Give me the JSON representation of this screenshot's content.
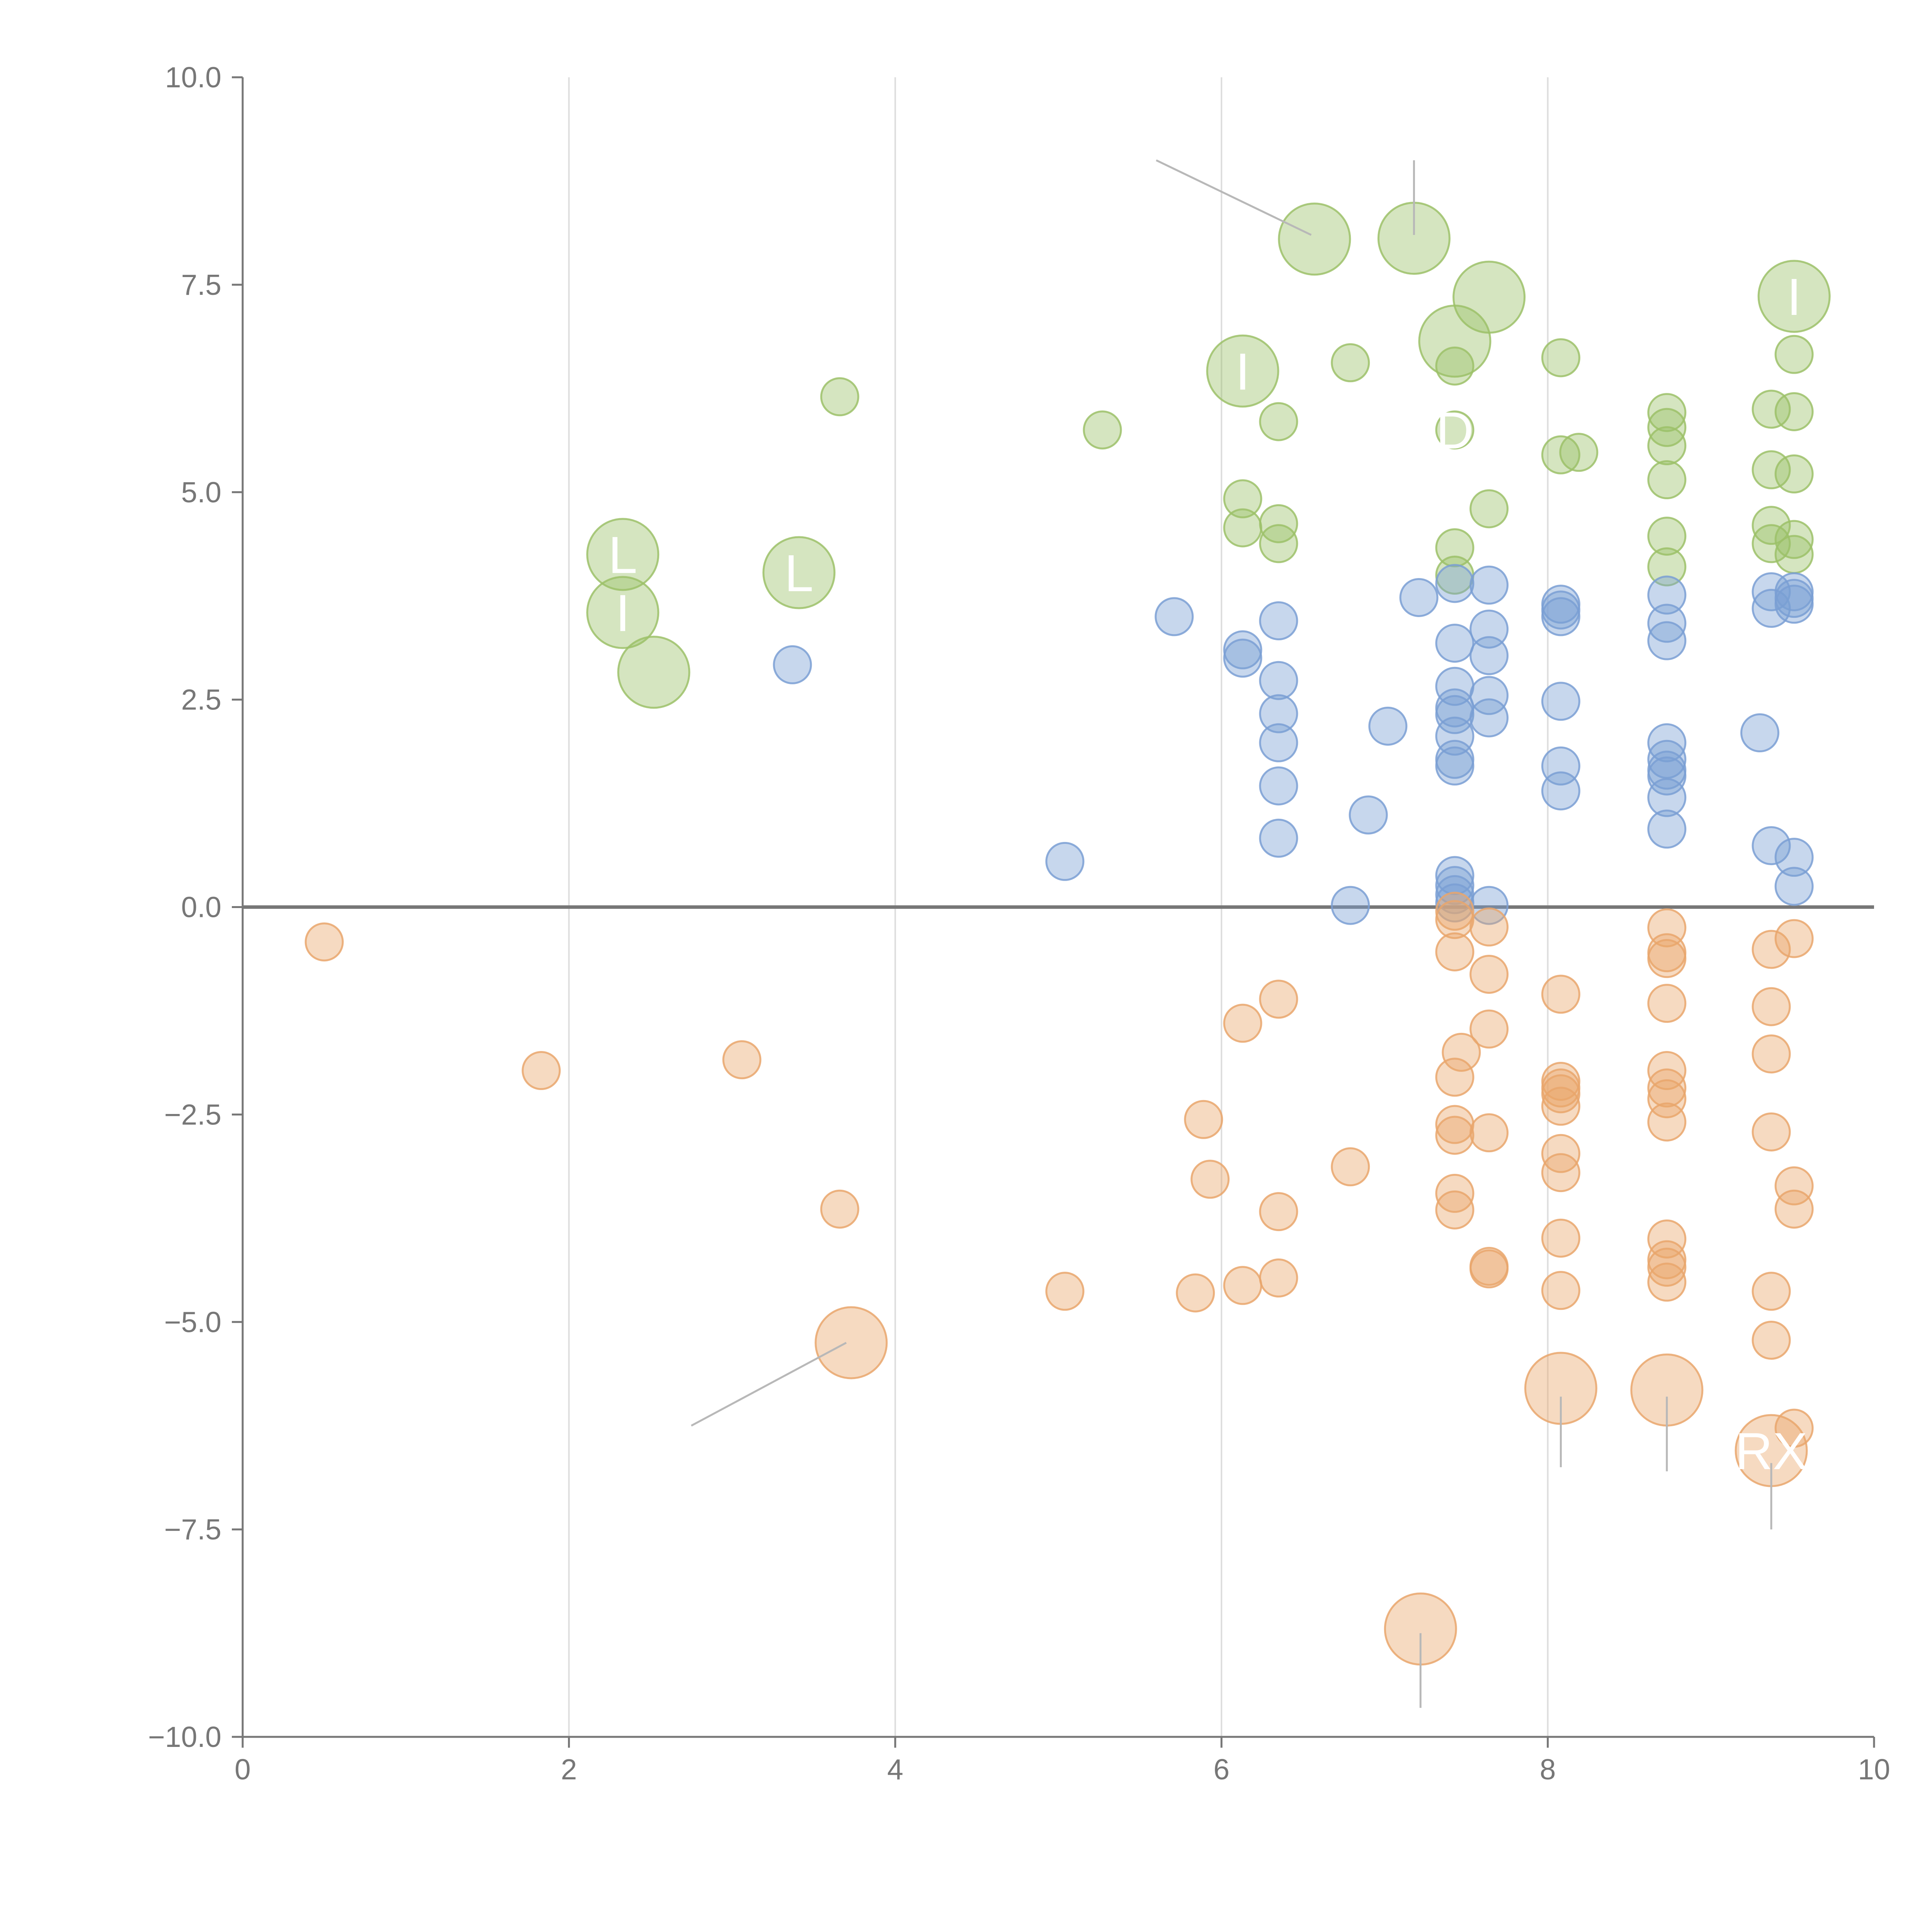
{
  "chart_data": {
    "type": "scatter",
    "title": "",
    "xlabel": "",
    "ylabel": "",
    "xlim": [
      0,
      10
    ],
    "ylim": [
      -10,
      10
    ],
    "x_ticks": [
      "0",
      "2",
      "4",
      "6",
      "8",
      "10"
    ],
    "y_ticks": [
      "10.0",
      "7.5",
      "5.0",
      "2.5",
      "0.0",
      "−2.5",
      "−5.0",
      "−7.5",
      "−10.0"
    ],
    "grid": "vertical",
    "zero_line": true,
    "legend": "none",
    "series": [
      {
        "name": "green",
        "color": "#9cc168",
        "points": [
          {
            "x": 2.33,
            "y": 4.25,
            "big": true,
            "label": "L"
          },
          {
            "x": 2.33,
            "y": 3.55,
            "big": true,
            "label": "I"
          },
          {
            "x": 2.52,
            "y": 2.83,
            "big": true
          },
          {
            "x": 3.41,
            "y": 4.03,
            "big": true,
            "label": "L"
          },
          {
            "x": 3.66,
            "y": 6.15
          },
          {
            "x": 5.27,
            "y": 5.75
          },
          {
            "x": 6.13,
            "y": 6.46,
            "big": true,
            "label": "I"
          },
          {
            "x": 6.57,
            "y": 8.05,
            "big": true
          },
          {
            "x": 7.18,
            "y": 8.06,
            "big": true
          },
          {
            "x": 7.64,
            "y": 7.35,
            "big": true
          },
          {
            "x": 7.43,
            "y": 6.82,
            "big": true
          },
          {
            "x": 9.51,
            "y": 7.36,
            "big": true,
            "label": "I"
          },
          {
            "x": 6.35,
            "y": 5.85
          },
          {
            "x": 6.79,
            "y": 6.56
          },
          {
            "x": 7.43,
            "y": 6.52
          },
          {
            "x": 7.43,
            "y": 5.75,
            "label": "D"
          },
          {
            "x": 8.08,
            "y": 6.62
          },
          {
            "x": 8.08,
            "y": 5.45
          },
          {
            "x": 8.19,
            "y": 5.48
          },
          {
            "x": 7.64,
            "y": 4.8
          },
          {
            "x": 6.13,
            "y": 4.92
          },
          {
            "x": 6.13,
            "y": 4.57
          },
          {
            "x": 6.35,
            "y": 4.62
          },
          {
            "x": 6.35,
            "y": 4.38
          },
          {
            "x": 7.43,
            "y": 4.33
          },
          {
            "x": 7.43,
            "y": 4.0
          },
          {
            "x": 8.73,
            "y": 5.96
          },
          {
            "x": 8.73,
            "y": 5.78
          },
          {
            "x": 8.73,
            "y": 5.56
          },
          {
            "x": 8.73,
            "y": 5.15
          },
          {
            "x": 8.73,
            "y": 4.47
          },
          {
            "x": 8.73,
            "y": 4.1
          },
          {
            "x": 9.37,
            "y": 6.0
          },
          {
            "x": 9.37,
            "y": 5.27
          },
          {
            "x": 9.37,
            "y": 4.6
          },
          {
            "x": 9.37,
            "y": 4.38
          },
          {
            "x": 9.51,
            "y": 6.66
          },
          {
            "x": 9.51,
            "y": 5.97
          },
          {
            "x": 9.51,
            "y": 5.22
          },
          {
            "x": 9.51,
            "y": 4.43
          },
          {
            "x": 9.51,
            "y": 4.25
          }
        ]
      },
      {
        "name": "blue",
        "color": "#7a9fd4",
        "points": [
          {
            "x": 3.37,
            "y": 2.92
          },
          {
            "x": 5.04,
            "y": 0.55
          },
          {
            "x": 5.71,
            "y": 3.5
          },
          {
            "x": 6.13,
            "y": 3.1
          },
          {
            "x": 6.13,
            "y": 3.0
          },
          {
            "x": 6.35,
            "y": 3.45
          },
          {
            "x": 6.35,
            "y": 2.73
          },
          {
            "x": 6.35,
            "y": 2.33
          },
          {
            "x": 6.35,
            "y": 1.98
          },
          {
            "x": 6.35,
            "y": 1.46
          },
          {
            "x": 6.35,
            "y": 0.83
          },
          {
            "x": 6.79,
            "y": 0.02
          },
          {
            "x": 6.9,
            "y": 1.11
          },
          {
            "x": 7.02,
            "y": 2.18
          },
          {
            "x": 7.21,
            "y": 3.73
          },
          {
            "x": 7.43,
            "y": 3.9
          },
          {
            "x": 7.43,
            "y": 3.18
          },
          {
            "x": 7.43,
            "y": 2.66
          },
          {
            "x": 7.43,
            "y": 2.4
          },
          {
            "x": 7.43,
            "y": 2.32
          },
          {
            "x": 7.43,
            "y": 2.06
          },
          {
            "x": 7.43,
            "y": 1.78
          },
          {
            "x": 7.43,
            "y": 1.7
          },
          {
            "x": 7.43,
            "y": 0.38
          },
          {
            "x": 7.43,
            "y": 0.26
          },
          {
            "x": 7.43,
            "y": 0.15
          },
          {
            "x": 7.43,
            "y": 0.05
          },
          {
            "x": 7.64,
            "y": 3.88
          },
          {
            "x": 7.64,
            "y": 3.35
          },
          {
            "x": 7.64,
            "y": 3.03
          },
          {
            "x": 7.64,
            "y": 2.55
          },
          {
            "x": 7.64,
            "y": 2.28
          },
          {
            "x": 7.64,
            "y": 0.02
          },
          {
            "x": 8.08,
            "y": 3.65
          },
          {
            "x": 8.08,
            "y": 3.58
          },
          {
            "x": 8.08,
            "y": 3.5
          },
          {
            "x": 8.08,
            "y": 2.48
          },
          {
            "x": 8.08,
            "y": 1.7
          },
          {
            "x": 8.08,
            "y": 1.4
          },
          {
            "x": 8.73,
            "y": 3.76
          },
          {
            "x": 8.73,
            "y": 3.42
          },
          {
            "x": 8.73,
            "y": 3.21
          },
          {
            "x": 8.73,
            "y": 1.98
          },
          {
            "x": 8.73,
            "y": 1.78
          },
          {
            "x": 8.73,
            "y": 1.65
          },
          {
            "x": 8.73,
            "y": 1.58
          },
          {
            "x": 8.73,
            "y": 1.32
          },
          {
            "x": 8.73,
            "y": 0.94
          },
          {
            "x": 9.3,
            "y": 2.1
          },
          {
            "x": 9.37,
            "y": 3.8
          },
          {
            "x": 9.37,
            "y": 3.6
          },
          {
            "x": 9.37,
            "y": 0.74
          },
          {
            "x": 9.51,
            "y": 3.8
          },
          {
            "x": 9.51,
            "y": 3.72
          },
          {
            "x": 9.51,
            "y": 3.65
          },
          {
            "x": 9.51,
            "y": 0.6
          },
          {
            "x": 9.51,
            "y": 0.25
          }
        ]
      },
      {
        "name": "orange",
        "color": "#e9a66c",
        "points": [
          {
            "x": 0.5,
            "y": -0.42
          },
          {
            "x": 1.83,
            "y": -1.97
          },
          {
            "x": 3.06,
            "y": -1.84
          },
          {
            "x": 3.66,
            "y": -3.64
          },
          {
            "x": 3.73,
            "y": -5.25,
            "big": true
          },
          {
            "x": 5.04,
            "y": -4.63
          },
          {
            "x": 5.84,
            "y": -4.65
          },
          {
            "x": 5.89,
            "y": -2.56
          },
          {
            "x": 5.93,
            "y": -3.28
          },
          {
            "x": 6.13,
            "y": -1.4
          },
          {
            "x": 6.13,
            "y": -4.56
          },
          {
            "x": 6.35,
            "y": -1.11
          },
          {
            "x": 6.35,
            "y": -3.67
          },
          {
            "x": 6.35,
            "y": -4.47
          },
          {
            "x": 6.79,
            "y": -3.13
          },
          {
            "x": 7.43,
            "y": -0.05
          },
          {
            "x": 7.43,
            "y": -0.15
          },
          {
            "x": 7.43,
            "y": -0.54
          },
          {
            "x": 7.47,
            "y": -1.75
          },
          {
            "x": 7.43,
            "y": -2.05
          },
          {
            "x": 7.43,
            "y": -2.62
          },
          {
            "x": 7.43,
            "y": -2.75
          },
          {
            "x": 7.43,
            "y": -3.45
          },
          {
            "x": 7.43,
            "y": -3.65
          },
          {
            "x": 7.64,
            "y": -0.24
          },
          {
            "x": 7.64,
            "y": -0.81
          },
          {
            "x": 7.64,
            "y": -1.47
          },
          {
            "x": 7.64,
            "y": -2.72
          },
          {
            "x": 7.64,
            "y": -4.33
          },
          {
            "x": 7.64,
            "y": -4.36
          },
          {
            "x": 8.08,
            "y": -1.05
          },
          {
            "x": 8.08,
            "y": -2.1
          },
          {
            "x": 8.08,
            "y": -2.18
          },
          {
            "x": 8.08,
            "y": -2.25
          },
          {
            "x": 8.08,
            "y": -2.4
          },
          {
            "x": 8.08,
            "y": -2.97
          },
          {
            "x": 8.08,
            "y": -3.2
          },
          {
            "x": 8.08,
            "y": -3.99
          },
          {
            "x": 8.08,
            "y": -4.62
          },
          {
            "x": 8.08,
            "y": -5.8,
            "big": true
          },
          {
            "x": 8.73,
            "y": -0.25
          },
          {
            "x": 8.73,
            "y": -0.55
          },
          {
            "x": 8.73,
            "y": -0.62
          },
          {
            "x": 8.73,
            "y": -1.16
          },
          {
            "x": 8.73,
            "y": -1.97
          },
          {
            "x": 8.73,
            "y": -2.18
          },
          {
            "x": 8.73,
            "y": -2.31
          },
          {
            "x": 8.73,
            "y": -2.59
          },
          {
            "x": 8.73,
            "y": -4.0
          },
          {
            "x": 8.73,
            "y": -4.25
          },
          {
            "x": 8.73,
            "y": -4.34
          },
          {
            "x": 8.73,
            "y": -4.52
          },
          {
            "x": 8.73,
            "y": -5.82,
            "big": true
          },
          {
            "x": 9.37,
            "y": -0.51
          },
          {
            "x": 9.37,
            "y": -1.2
          },
          {
            "x": 9.37,
            "y": -1.77
          },
          {
            "x": 9.37,
            "y": -2.71
          },
          {
            "x": 9.37,
            "y": -4.63
          },
          {
            "x": 9.37,
            "y": -5.22
          },
          {
            "x": 9.37,
            "y": -6.55,
            "big": true,
            "label": "RX"
          },
          {
            "x": 9.51,
            "y": -0.38
          },
          {
            "x": 9.51,
            "y": -3.36
          },
          {
            "x": 9.51,
            "y": -3.64
          },
          {
            "x": 9.51,
            "y": -6.28
          },
          {
            "x": 7.22,
            "y": -8.7,
            "big": true
          }
        ]
      }
    ]
  }
}
